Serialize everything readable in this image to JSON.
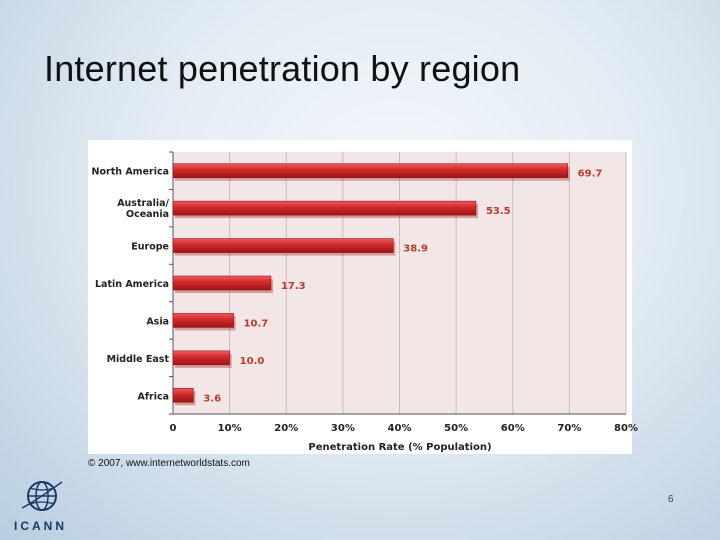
{
  "slide": {
    "title": "Internet penetration by region",
    "credit": "© 2007, www.internetworldstats.com",
    "page_number": "6",
    "logo_text": "ICANN"
  },
  "colors": {
    "bar": "#d0282a",
    "bar_dark": "#9c1416",
    "plot_bg": "#f2e6e7",
    "grid": "#d2b8ba",
    "value_label": "#c0392b"
  },
  "chart_data": {
    "type": "bar",
    "orientation": "horizontal",
    "categories": [
      "North America",
      "Australia/ Oceania",
      "Europe",
      "Latin America",
      "Asia",
      "Middle East",
      "Africa"
    ],
    "values": [
      69.7,
      53.5,
      38.9,
      17.3,
      10.7,
      10.0,
      3.6
    ],
    "value_labels": [
      "69.7",
      "53.5",
      "38.9",
      "17.3",
      "10.7",
      "10.0",
      "3.6"
    ],
    "xlabel": "Penetration Rate (% Population)",
    "ylabel": "",
    "xlim": [
      0,
      80
    ],
    "x_ticks": [
      "0",
      "10%",
      "20%",
      "30%",
      "40%",
      "50%",
      "60%",
      "70%",
      "80%"
    ],
    "grid": true
  }
}
